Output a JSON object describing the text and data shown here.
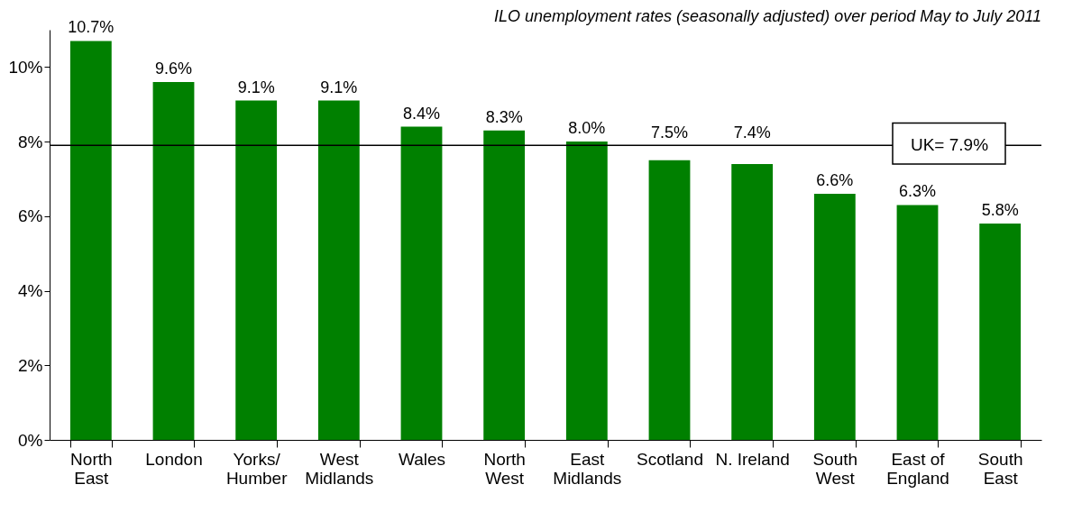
{
  "chart_data": {
    "type": "bar",
    "categories": [
      "North East",
      "London",
      "Yorks/ Humber",
      "West Midlands",
      "Wales",
      "North West",
      "East Midlands",
      "Scotland",
      "N. Ireland",
      "South West",
      "East of England",
      "South East"
    ],
    "values": [
      10.7,
      9.6,
      9.1,
      9.1,
      8.4,
      8.3,
      8.0,
      7.5,
      7.4,
      6.6,
      6.3,
      5.8
    ],
    "value_labels": [
      "10.7%",
      "9.6%",
      "9.1%",
      "9.1%",
      "8.4%",
      "8.3%",
      "8.0%",
      "7.5%",
      "7.4%",
      "6.6%",
      "6.3%",
      "5.8%"
    ],
    "color": "#008000",
    "ylim": [
      0,
      11
    ],
    "yticks": [
      {
        "value": 0,
        "label": "0%"
      },
      {
        "value": 2,
        "label": "2%"
      },
      {
        "value": 4,
        "label": "4%"
      },
      {
        "value": 6,
        "label": "6%"
      },
      {
        "value": 8,
        "label": "8%"
      },
      {
        "value": 10,
        "label": "10%"
      }
    ],
    "grid": false,
    "ref_lines": [
      {
        "axis": "y",
        "value": 7.9,
        "label": "UK= 7.9%",
        "color": "#000000"
      }
    ],
    "annotations": [
      "ILO unemployment rates (seasonally adjusted) over period May to July 2011"
    ]
  }
}
